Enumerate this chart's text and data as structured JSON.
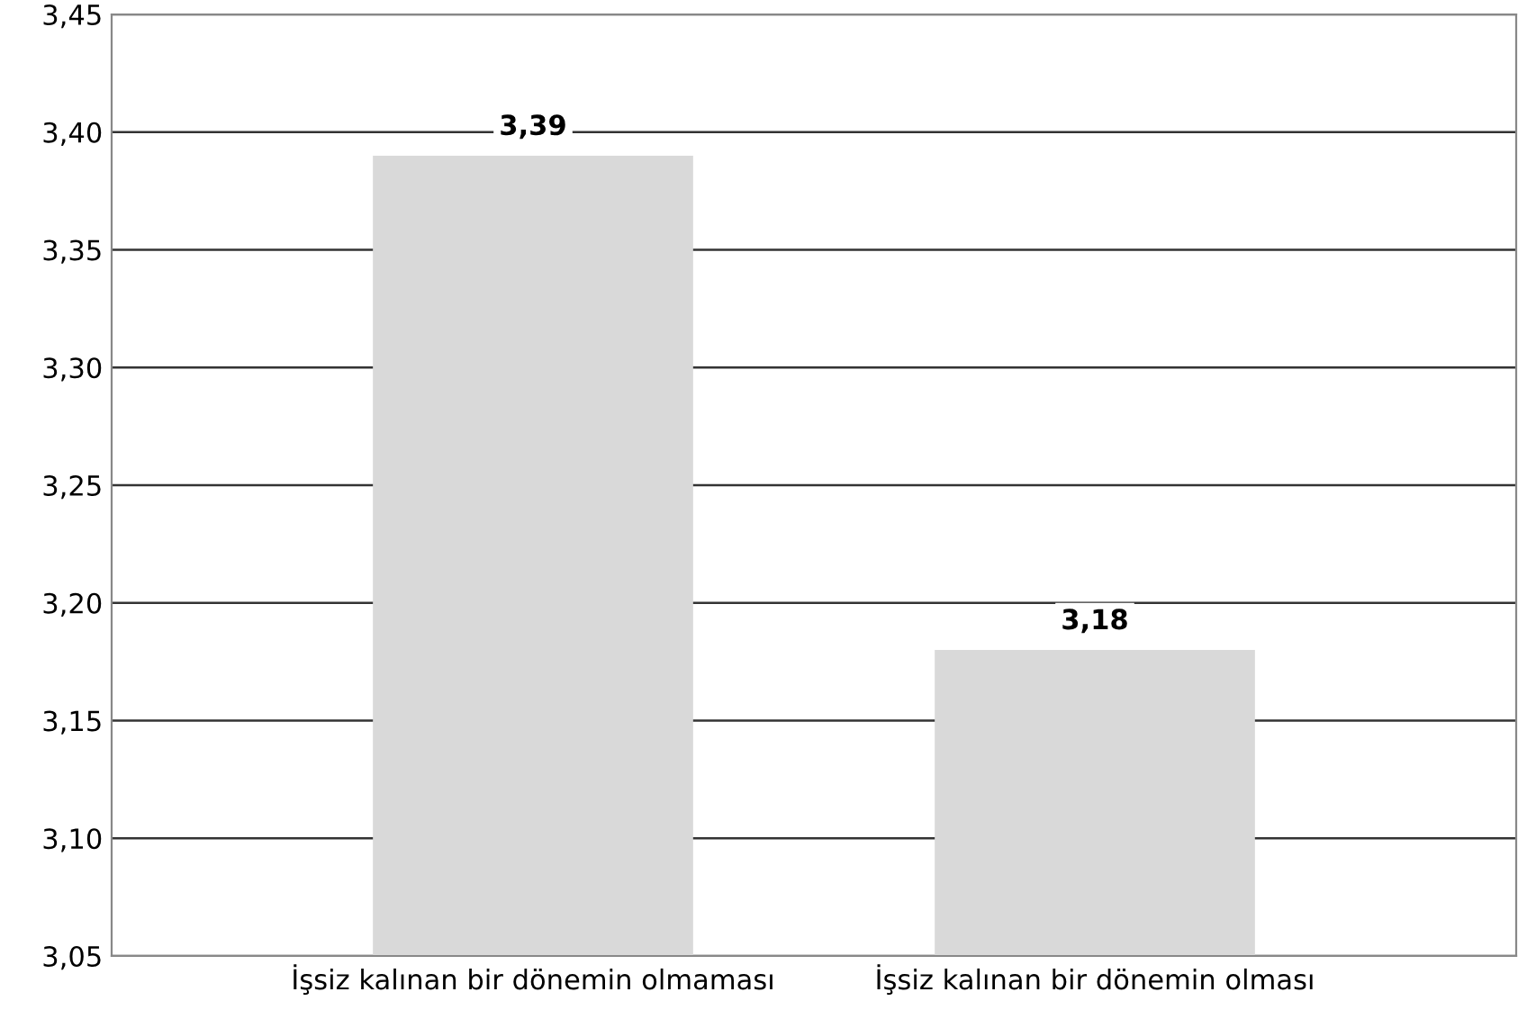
{
  "chart_data": {
    "type": "bar",
    "categories": [
      "İşsiz kalınan bir dönemin olmaması",
      "İşsiz kalınan bir dönemin olması"
    ],
    "values": [
      3.39,
      3.18
    ],
    "value_labels": [
      "3,39",
      "3,18"
    ],
    "color": "#d9d9d9",
    "ylim": [
      3.05,
      3.45
    ],
    "yticks": [
      {
        "value": 3.05,
        "label": "3,05"
      },
      {
        "value": 3.1,
        "label": "3,10"
      },
      {
        "value": 3.15,
        "label": "3,15"
      },
      {
        "value": 3.2,
        "label": "3,20"
      },
      {
        "value": 3.25,
        "label": "3,25"
      },
      {
        "value": 3.3,
        "label": "3,30"
      },
      {
        "value": 3.35,
        "label": "3,35"
      },
      {
        "value": 3.4,
        "label": "3,40"
      },
      {
        "value": 3.45,
        "label": "3,45"
      }
    ],
    "grid": "y"
  }
}
